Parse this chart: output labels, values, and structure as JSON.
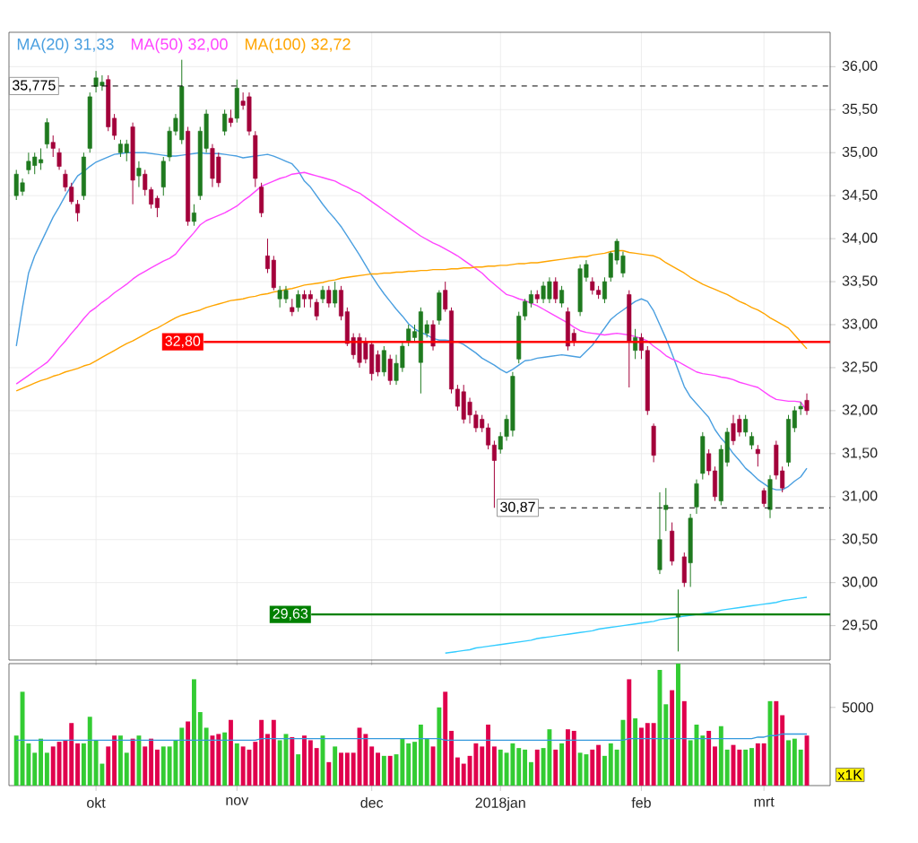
{
  "chart_data": [
    {
      "type": "candlestick",
      "categories": [
        null,
        null,
        null,
        null,
        null,
        null,
        null,
        null,
        null,
        null,
        null,
        null,
        null,
        null,
        null,
        null,
        null,
        null,
        null,
        null,
        null,
        null,
        null,
        null,
        null,
        null,
        null,
        null,
        null,
        null,
        null,
        null,
        null,
        null,
        null,
        null,
        null,
        null,
        null,
        null,
        null,
        null,
        null,
        null,
        null,
        null,
        null,
        null,
        null,
        null,
        null,
        null,
        null,
        null,
        null,
        null,
        null,
        null,
        null,
        null,
        null,
        null,
        null,
        null,
        null,
        null,
        null,
        null,
        null,
        null,
        null,
        null,
        null,
        null,
        null,
        null,
        null,
        null,
        null,
        null,
        null,
        null,
        null,
        null,
        null,
        null,
        null,
        null,
        null,
        null,
        null,
        null,
        null,
        null,
        null,
        null,
        null,
        null,
        null,
        null,
        null,
        null,
        null,
        null,
        null,
        null,
        null,
        null,
        null,
        null,
        null,
        null,
        null,
        null,
        null,
        null,
        null,
        null,
        null,
        null,
        null,
        null,
        null,
        null,
        null,
        null,
        null,
        null,
        null,
        null
      ],
      "ohlc": [
        [
          34.5,
          34.8,
          34.45,
          34.75
        ],
        [
          34.55,
          34.7,
          34.5,
          34.65
        ],
        [
          34.8,
          35.0,
          34.75,
          34.9
        ],
        [
          34.85,
          35.0,
          34.75,
          34.95
        ],
        [
          34.88,
          35.05,
          34.8,
          34.92
        ],
        [
          35.1,
          35.4,
          35.05,
          35.35
        ],
        [
          35.12,
          35.2,
          34.95,
          35.05
        ],
        [
          35.0,
          35.05,
          34.8,
          34.84
        ],
        [
          34.75,
          34.8,
          34.55,
          34.6
        ],
        [
          34.6,
          34.65,
          34.4,
          34.43
        ],
        [
          34.4,
          34.45,
          34.2,
          34.3
        ],
        [
          34.5,
          35.0,
          34.45,
          34.95
        ],
        [
          35.05,
          35.7,
          35.0,
          35.65
        ],
        [
          35.77,
          35.95,
          35.7,
          35.87
        ],
        [
          35.78,
          35.9,
          35.72,
          35.82
        ],
        [
          35.85,
          35.9,
          35.25,
          35.3
        ],
        [
          35.4,
          35.45,
          35.15,
          35.2
        ],
        [
          35.0,
          35.15,
          34.95,
          35.1
        ],
        [
          35.0,
          35.15,
          34.9,
          35.1
        ],
        [
          35.3,
          35.35,
          34.4,
          34.68
        ],
        [
          34.73,
          34.9,
          34.6,
          34.82
        ],
        [
          34.75,
          34.8,
          34.5,
          34.57
        ],
        [
          34.57,
          34.6,
          34.35,
          34.4
        ],
        [
          34.47,
          34.5,
          34.25,
          34.36
        ],
        [
          34.6,
          34.95,
          34.5,
          34.9
        ],
        [
          34.95,
          35.3,
          34.9,
          35.25
        ],
        [
          35.25,
          35.45,
          35.2,
          35.4
        ],
        [
          35.15,
          36.08,
          35.1,
          35.77
        ],
        [
          35.25,
          35.3,
          34.15,
          34.2
        ],
        [
          34.2,
          34.4,
          34.15,
          34.3
        ],
        [
          34.5,
          35.3,
          34.45,
          35.25
        ],
        [
          35.05,
          35.5,
          35.0,
          35.45
        ],
        [
          35.05,
          35.1,
          34.6,
          34.7
        ],
        [
          34.95,
          35.0,
          34.6,
          34.65
        ],
        [
          35.25,
          35.5,
          35.2,
          35.45
        ],
        [
          35.4,
          35.5,
          35.3,
          35.35
        ],
        [
          35.4,
          35.85,
          35.35,
          35.75
        ],
        [
          35.6,
          35.7,
          35.5,
          35.55
        ],
        [
          35.65,
          35.7,
          35.2,
          35.25
        ],
        [
          35.2,
          35.25,
          34.6,
          34.7
        ],
        [
          34.6,
          34.65,
          34.25,
          34.3
        ],
        [
          33.8,
          34.0,
          33.6,
          33.65
        ],
        [
          33.75,
          33.8,
          33.4,
          33.43
        ],
        [
          33.3,
          33.45,
          33.2,
          33.4
        ],
        [
          33.3,
          33.45,
          33.25,
          33.4
        ],
        [
          33.2,
          33.3,
          33.1,
          33.15
        ],
        [
          33.2,
          33.4,
          33.15,
          33.35
        ],
        [
          33.35,
          33.4,
          33.2,
          33.3
        ],
        [
          33.35,
          33.4,
          33.2,
          33.3
        ],
        [
          33.26,
          33.3,
          33.05,
          33.1
        ],
        [
          33.3,
          33.45,
          33.25,
          33.4
        ],
        [
          33.4,
          33.45,
          33.2,
          33.25
        ],
        [
          33.25,
          33.5,
          33.2,
          33.4
        ],
        [
          33.4,
          33.45,
          33.05,
          33.1
        ],
        [
          33.15,
          33.2,
          32.75,
          32.78
        ],
        [
          32.85,
          32.9,
          32.6,
          32.65
        ],
        [
          32.85,
          32.9,
          32.5,
          32.56
        ],
        [
          32.8,
          32.85,
          32.55,
          32.6
        ],
        [
          32.77,
          32.8,
          32.35,
          32.43
        ],
        [
          32.65,
          32.7,
          32.4,
          32.45
        ],
        [
          32.45,
          32.75,
          32.4,
          32.7
        ],
        [
          32.6,
          32.65,
          32.3,
          32.35
        ],
        [
          32.35,
          32.65,
          32.3,
          32.55
        ],
        [
          32.5,
          32.8,
          32.45,
          32.75
        ],
        [
          32.8,
          33.0,
          32.75,
          32.95
        ],
        [
          32.85,
          33.0,
          32.8,
          32.92
        ],
        [
          32.56,
          33.2,
          32.2,
          33.15
        ],
        [
          32.9,
          33.05,
          32.85,
          33.0
        ],
        [
          33.0,
          33.05,
          32.7,
          32.75
        ],
        [
          33.05,
          33.4,
          33.0,
          33.37
        ],
        [
          33.4,
          33.5,
          33.15,
          33.18
        ],
        [
          33.16,
          33.2,
          32.2,
          32.25
        ],
        [
          32.25,
          32.3,
          32.0,
          32.05
        ],
        [
          32.22,
          32.3,
          31.85,
          31.9
        ],
        [
          32.1,
          32.15,
          31.85,
          31.95
        ],
        [
          31.95,
          32.0,
          31.75,
          31.8
        ],
        [
          31.9,
          31.95,
          31.75,
          31.8
        ],
        [
          31.8,
          31.85,
          31.55,
          31.6
        ],
        [
          31.6,
          31.65,
          30.87,
          31.42
        ],
        [
          31.55,
          31.75,
          31.5,
          31.7
        ],
        [
          31.7,
          31.95,
          31.65,
          31.9
        ],
        [
          31.77,
          32.45,
          31.7,
          32.4
        ],
        [
          32.6,
          33.15,
          32.55,
          33.1
        ],
        [
          33.1,
          33.3,
          33.05,
          33.27
        ],
        [
          33.25,
          33.4,
          33.2,
          33.35
        ],
        [
          33.35,
          33.4,
          33.25,
          33.3
        ],
        [
          33.3,
          33.5,
          33.25,
          33.45
        ],
        [
          33.3,
          33.55,
          33.25,
          33.5
        ],
        [
          33.5,
          33.55,
          33.25,
          33.3
        ],
        [
          33.25,
          33.45,
          33.2,
          33.4
        ],
        [
          33.15,
          33.2,
          32.7,
          32.75
        ],
        [
          32.9,
          32.95,
          32.75,
          32.8
        ],
        [
          33.15,
          33.7,
          33.1,
          33.65
        ],
        [
          33.55,
          33.75,
          33.5,
          33.7
        ],
        [
          33.5,
          33.55,
          33.35,
          33.4
        ],
        [
          33.4,
          33.45,
          33.3,
          33.35
        ],
        [
          33.3,
          33.55,
          33.25,
          33.5
        ],
        [
          33.55,
          33.85,
          33.5,
          33.83
        ],
        [
          33.75,
          34.0,
          33.7,
          33.97
        ],
        [
          33.6,
          33.85,
          33.55,
          33.8
        ],
        [
          33.35,
          33.4,
          32.27,
          32.8
        ],
        [
          32.7,
          32.95,
          32.6,
          32.85
        ],
        [
          32.85,
          32.9,
          32.6,
          32.7
        ],
        [
          32.7,
          32.75,
          31.95,
          32.0
        ],
        [
          31.82,
          31.85,
          31.4,
          31.48
        ],
        [
          30.15,
          31.05,
          30.1,
          30.5
        ],
        [
          30.85,
          31.1,
          30.6,
          30.9
        ],
        [
          30.6,
          30.7,
          30.2,
          30.25
        ],
        [
          29.6,
          29.92,
          29.2,
          29.62
        ],
        [
          30.3,
          30.35,
          29.95,
          30.0
        ],
        [
          30.23,
          30.8,
          29.95,
          30.75
        ],
        [
          30.88,
          31.2,
          30.8,
          31.15
        ],
        [
          31.27,
          31.75,
          31.2,
          31.7
        ],
        [
          31.5,
          31.55,
          31.25,
          31.3
        ],
        [
          31.3,
          31.35,
          30.95,
          31.0
        ],
        [
          30.95,
          31.6,
          30.9,
          31.55
        ],
        [
          31.4,
          31.8,
          31.35,
          31.75
        ],
        [
          31.85,
          31.95,
          31.6,
          31.65
        ],
        [
          31.9,
          31.95,
          31.7,
          31.75
        ],
        [
          31.75,
          31.95,
          31.7,
          31.9
        ],
        [
          31.6,
          31.75,
          31.55,
          31.7
        ],
        [
          31.55,
          31.6,
          31.35,
          31.5
        ],
        [
          31.07,
          31.1,
          30.88,
          30.92
        ],
        [
          30.85,
          31.25,
          30.75,
          31.2
        ],
        [
          31.6,
          31.65,
          31.2,
          31.25
        ],
        [
          31.3,
          31.35,
          31.05,
          31.1
        ],
        [
          31.4,
          31.95,
          31.35,
          31.9
        ],
        [
          31.8,
          32.05,
          31.75,
          32.0
        ],
        [
          32.02,
          32.1,
          31.95,
          32.05
        ],
        [
          32.12,
          32.2,
          31.95,
          32.0
        ]
      ],
      "series": [
        {
          "type": "line",
          "name": "MA(20)  31,33",
          "color": "#4a9fe0",
          "values": [
            32.75,
            33.2,
            33.6,
            33.8,
            33.95,
            34.1,
            34.25,
            34.37,
            34.5,
            34.62,
            34.73,
            34.78,
            34.84,
            34.89,
            34.92,
            34.95,
            34.98,
            34.99,
            35.0,
            35.0,
            35.0,
            35.0,
            34.99,
            34.98,
            34.97,
            34.96,
            34.96,
            34.97,
            34.98,
            34.99,
            35.0,
            34.99,
            34.99,
            34.99,
            34.98,
            34.97,
            34.96,
            34.94,
            34.95,
            34.96,
            34.97,
            34.98,
            34.96,
            34.93,
            34.9,
            34.87,
            34.79,
            34.67,
            34.6,
            34.5,
            34.4,
            34.31,
            34.23,
            34.14,
            34.03,
            33.92,
            33.81,
            33.69,
            33.57,
            33.46,
            33.36,
            33.27,
            33.18,
            33.1,
            33.01,
            32.95,
            32.91,
            32.88,
            32.84,
            32.82,
            32.82,
            32.81,
            32.8,
            32.77,
            32.72,
            32.67,
            32.61,
            32.57,
            32.53,
            32.48,
            32.44,
            32.48,
            32.53,
            32.58,
            32.59,
            32.61,
            32.62,
            32.63,
            32.64,
            32.65,
            32.64,
            32.63,
            32.62,
            32.69,
            32.76,
            32.86,
            32.96,
            33.06,
            33.12,
            33.17,
            33.22,
            33.27,
            33.3,
            33.27,
            33.16,
            33.0,
            32.84,
            32.66,
            32.47,
            32.28,
            32.16,
            32.08,
            32.0,
            31.92,
            31.78,
            31.68,
            31.6,
            31.5,
            31.42,
            31.33,
            31.27,
            31.2,
            31.15,
            31.1,
            31.08,
            31.08,
            31.12,
            31.18,
            31.23,
            31.33
          ]
        },
        {
          "type": "line",
          "name": "MA(50)  32,00",
          "color": "#ff44ff",
          "values": [
            32.31,
            32.36,
            32.41,
            32.46,
            32.51,
            32.56,
            32.64,
            32.73,
            32.81,
            32.9,
            32.98,
            33.07,
            33.15,
            33.2,
            33.26,
            33.31,
            33.37,
            33.42,
            33.47,
            33.53,
            33.58,
            33.62,
            33.66,
            33.7,
            33.74,
            33.77,
            33.82,
            33.91,
            33.99,
            34.07,
            34.16,
            34.21,
            34.24,
            34.27,
            34.3,
            34.34,
            34.38,
            34.44,
            34.49,
            34.55,
            34.61,
            34.64,
            34.67,
            34.7,
            34.72,
            34.75,
            34.76,
            34.77,
            34.75,
            34.73,
            34.71,
            34.69,
            34.67,
            34.63,
            34.6,
            34.56,
            34.53,
            34.48,
            34.43,
            34.38,
            34.33,
            34.28,
            34.23,
            34.18,
            34.13,
            34.08,
            34.03,
            33.99,
            33.95,
            33.92,
            33.88,
            33.84,
            33.8,
            33.75,
            33.7,
            33.65,
            33.6,
            33.53,
            33.47,
            33.41,
            33.35,
            33.33,
            33.3,
            33.28,
            33.25,
            33.22,
            33.18,
            33.14,
            33.1,
            33.06,
            33.02,
            32.97,
            32.93,
            32.91,
            32.9,
            32.89,
            32.88,
            32.89,
            32.9,
            32.89,
            32.88,
            32.86,
            32.84,
            32.81,
            32.75,
            32.7,
            32.64,
            32.6,
            32.57,
            32.53,
            32.49,
            32.45,
            32.43,
            32.42,
            32.41,
            32.39,
            32.38,
            32.36,
            32.33,
            32.31,
            32.29,
            32.27,
            32.22,
            32.17,
            32.13,
            32.12,
            32.11,
            32.11,
            32.1,
            32.0
          ]
        },
        {
          "type": "line",
          "name": "MA(100)  32,72",
          "color": "#ffa500",
          "values": [
            32.23,
            32.26,
            32.29,
            32.32,
            32.35,
            32.37,
            32.4,
            32.42,
            32.45,
            32.47,
            32.49,
            32.52,
            32.54,
            32.58,
            32.62,
            32.66,
            32.7,
            32.74,
            32.78,
            32.81,
            32.85,
            32.89,
            32.93,
            32.96,
            33.0,
            33.04,
            33.08,
            33.11,
            33.13,
            33.15,
            33.17,
            33.2,
            33.22,
            33.24,
            33.26,
            33.28,
            33.29,
            33.3,
            33.32,
            33.33,
            33.35,
            33.36,
            33.38,
            33.39,
            33.41,
            33.42,
            33.44,
            33.46,
            33.47,
            33.48,
            33.49,
            33.51,
            33.52,
            33.54,
            33.55,
            33.56,
            33.57,
            33.58,
            33.59,
            33.59,
            33.6,
            33.6,
            33.61,
            33.61,
            33.62,
            33.62,
            33.63,
            33.63,
            33.64,
            33.64,
            33.64,
            33.65,
            33.65,
            33.66,
            33.66,
            33.67,
            33.67,
            33.68,
            33.68,
            33.69,
            33.69,
            33.7,
            33.71,
            33.71,
            33.72,
            33.72,
            33.73,
            33.74,
            33.75,
            33.76,
            33.77,
            33.78,
            33.79,
            33.79,
            33.81,
            33.82,
            33.83,
            33.85,
            33.86,
            33.86,
            33.84,
            33.83,
            33.82,
            33.81,
            33.8,
            33.77,
            33.72,
            33.68,
            33.64,
            33.6,
            33.55,
            33.51,
            33.47,
            33.44,
            33.41,
            33.38,
            33.35,
            33.31,
            33.27,
            33.24,
            33.2,
            33.17,
            33.13,
            33.08,
            33.04,
            33.0,
            32.96,
            32.88,
            32.8,
            32.72
          ]
        },
        {
          "type": "line",
          "color": "#33ccff",
          "values": [
            null,
            null,
            null,
            null,
            null,
            null,
            null,
            null,
            null,
            null,
            null,
            null,
            null,
            null,
            null,
            null,
            null,
            null,
            null,
            null,
            null,
            null,
            null,
            null,
            null,
            null,
            null,
            null,
            null,
            null,
            null,
            null,
            null,
            null,
            null,
            null,
            null,
            null,
            null,
            null,
            null,
            null,
            null,
            null,
            null,
            null,
            null,
            null,
            null,
            null,
            null,
            null,
            null,
            null,
            null,
            null,
            null,
            null,
            null,
            null,
            null,
            null,
            null,
            null,
            null,
            null,
            null,
            null,
            null,
            null,
            29.18,
            29.19,
            29.2,
            29.21,
            29.22,
            29.24,
            29.25,
            29.26,
            29.27,
            29.28,
            29.29,
            29.3,
            29.31,
            29.32,
            29.33,
            29.35,
            29.36,
            29.37,
            29.38,
            29.39,
            29.4,
            29.41,
            29.42,
            29.43,
            29.44,
            29.46,
            29.47,
            29.48,
            29.49,
            29.5,
            29.51,
            29.52,
            29.53,
            29.54,
            29.55,
            29.57,
            29.58,
            29.59,
            29.6,
            29.61,
            29.62,
            29.63,
            29.64,
            29.65,
            29.66,
            29.68,
            29.69,
            29.7,
            29.71,
            29.72,
            29.73,
            29.74,
            29.75,
            29.76,
            29.77,
            29.79,
            29.8,
            29.81,
            29.82,
            29.83
          ]
        }
      ],
      "ylim": [
        29.1,
        36.4
      ],
      "yticks": [
        {
          "value": 29.5,
          "label": "29,50"
        },
        {
          "value": 30,
          "label": "30,00"
        },
        {
          "value": 30.5,
          "label": "30,50"
        },
        {
          "value": 31,
          "label": "31,00"
        },
        {
          "value": 31.5,
          "label": "31,50"
        },
        {
          "value": 32,
          "label": "32,00"
        },
        {
          "value": 32.5,
          "label": "32,50"
        },
        {
          "value": 33,
          "label": "33,00"
        },
        {
          "value": 33.5,
          "label": "33,50"
        },
        {
          "value": 34,
          "label": "34,00"
        },
        {
          "value": 34.5,
          "label": "34,50"
        },
        {
          "value": 35,
          "label": "35,00"
        },
        {
          "value": 35.5,
          "label": "35,50"
        },
        {
          "value": 36,
          "label": "36,00"
        }
      ],
      "ref_lines": [
        {
          "axis": "y",
          "value": 35.775,
          "label": "35,775",
          "color": "#000000",
          "line_style": "dashed"
        },
        {
          "axis": "y",
          "value": 32.8,
          "label": "32,80",
          "color": "#ff0000"
        },
        {
          "axis": "y",
          "value": 30.87,
          "label": "30,87",
          "color": "#000000",
          "line_style": "dashed"
        },
        {
          "axis": "y",
          "value": 29.63,
          "label": "29,63",
          "color": "#008000"
        }
      ],
      "grid": true,
      "legend": "top left"
    },
    {
      "type": "bar",
      "categories": [
        null,
        null,
        null,
        null,
        null,
        null,
        null,
        null,
        null,
        null,
        null,
        null,
        null,
        "okt",
        null,
        null,
        null,
        null,
        null,
        null,
        null,
        null,
        null,
        null,
        null,
        null,
        null,
        null,
        null,
        null,
        null,
        null,
        null,
        null,
        null,
        null,
        "nov",
        null,
        null,
        null,
        null,
        null,
        null,
        null,
        null,
        null,
        null,
        null,
        null,
        null,
        null,
        null,
        null,
        null,
        null,
        null,
        null,
        null,
        "dec",
        null,
        null,
        null,
        null,
        null,
        null,
        null,
        null,
        null,
        null,
        null,
        null,
        null,
        null,
        null,
        null,
        null,
        null,
        null,
        null,
        "2018jan",
        null,
        null,
        null,
        null,
        null,
        null,
        null,
        null,
        null,
        null,
        null,
        null,
        null,
        null,
        null,
        null,
        null,
        null,
        null,
        null,
        null,
        null,
        "feb",
        null,
        null,
        null,
        null,
        null,
        null,
        null,
        null,
        null,
        null,
        null,
        null,
        null,
        null,
        null,
        null,
        null,
        null,
        null,
        "mrt",
        null,
        null,
        null,
        null,
        null,
        null,
        null
      ],
      "series": [
        {
          "type": "bar",
          "values": [
            3200,
            6000,
            2700,
            2100,
            3000,
            2100,
            2500,
            2800,
            2900,
            4000,
            2700,
            2700,
            4400,
            2900,
            1400,
            2500,
            3200,
            3200,
            2100,
            3000,
            3200,
            2500,
            3000,
            2300,
            2500,
            2500,
            2900,
            3700,
            4100,
            6800,
            4700,
            3700,
            3200,
            3300,
            3400,
            4200,
            2700,
            2500,
            2300,
            2800,
            4200,
            3300,
            4200,
            2900,
            3300,
            3100,
            2000,
            3200,
            2900,
            2400,
            3200,
            1500,
            2500,
            2100,
            2100,
            2100,
            3700,
            3300,
            2500,
            2100,
            1900,
            1900,
            2000,
            3000,
            2700,
            2800,
            3900,
            3000,
            2500,
            5000,
            6000,
            3500,
            1800,
            1400,
            1900,
            2700,
            2500,
            3900,
            2500,
            2300,
            2100,
            2700,
            2400,
            2300,
            1500,
            2300,
            2400,
            3600,
            2300,
            2700,
            3600,
            3500,
            2100,
            2000,
            2300,
            2600,
            1900,
            2700,
            2300,
            4200,
            6800,
            4300,
            3700,
            4000,
            4000,
            7400,
            5200,
            6100,
            7800,
            5400,
            2900,
            3900,
            3200,
            3500,
            2500,
            3800,
            2300,
            2600,
            2300,
            2300,
            2400,
            2700,
            2700,
            5400,
            5400,
            4500,
            2900,
            3000,
            2300,
            3200
          ],
          "colors": [
            "#33cc33",
            "#33cc33",
            "#33cc33",
            "#33cc33",
            "#33cc33",
            "#33cc33",
            "#e0004d",
            "#e0004d",
            "#e0004d",
            "#e0004d",
            "#e0004d",
            "#33cc33",
            "#33cc33",
            "#33cc33",
            "#33cc33",
            "#e0004d",
            "#e0004d",
            "#33cc33",
            "#33cc33",
            "#e0004d",
            "#33cc33",
            "#e0004d",
            "#e0004d",
            "#e0004d",
            "#33cc33",
            "#33cc33",
            "#33cc33",
            "#33cc33",
            "#e0004d",
            "#33cc33",
            "#33cc33",
            "#33cc33",
            "#e0004d",
            "#e0004d",
            "#33cc33",
            "#e0004d",
            "#33cc33",
            "#e0004d",
            "#e0004d",
            "#e0004d",
            "#e0004d",
            "#e0004d",
            "#e0004d",
            "#33cc33",
            "#33cc33",
            "#e0004d",
            "#33cc33",
            "#e0004d",
            "#e0004d",
            "#e0004d",
            "#33cc33",
            "#e0004d",
            "#33cc33",
            "#e0004d",
            "#e0004d",
            "#e0004d",
            "#e0004d",
            "#e0004d",
            "#e0004d",
            "#e0004d",
            "#33cc33",
            "#e0004d",
            "#33cc33",
            "#33cc33",
            "#33cc33",
            "#33cc33",
            "#33cc33",
            "#33cc33",
            "#e0004d",
            "#33cc33",
            "#e0004d",
            "#e0004d",
            "#e0004d",
            "#e0004d",
            "#e0004d",
            "#e0004d",
            "#e0004d",
            "#e0004d",
            "#e0004d",
            "#33cc33",
            "#33cc33",
            "#33cc33",
            "#33cc33",
            "#33cc33",
            "#33cc33",
            "#e0004d",
            "#33cc33",
            "#33cc33",
            "#e0004d",
            "#33cc33",
            "#e0004d",
            "#e0004d",
            "#33cc33",
            "#33cc33",
            "#e0004d",
            "#e0004d",
            "#33cc33",
            "#33cc33",
            "#33cc33",
            "#33cc33",
            "#e0004d",
            "#33cc33",
            "#e0004d",
            "#e0004d",
            "#e0004d",
            "#33cc33",
            "#33cc33",
            "#e0004d",
            "#33cc33",
            "#e0004d",
            "#33cc33",
            "#33cc33",
            "#33cc33",
            "#e0004d",
            "#e0004d",
            "#33cc33",
            "#33cc33",
            "#e0004d",
            "#e0004d",
            "#33cc33",
            "#33cc33",
            "#e0004d",
            "#e0004d",
            "#33cc33",
            "#e0004d",
            "#e0004d",
            "#33cc33",
            "#33cc33",
            "#33cc33",
            "#e0004d"
          ]
        },
        {
          "type": "line",
          "color": "#3399dd",
          "values": [
            2900,
            2900,
            2900,
            2900,
            2900,
            2900,
            2900,
            2900,
            2900,
            2900,
            2900,
            2900,
            2900,
            2900,
            2900,
            2900,
            2900,
            2900,
            2900,
            2900,
            2900,
            2900,
            2900,
            2900,
            2900,
            2900,
            2900,
            2900,
            2900,
            2900,
            2900,
            2900,
            2900,
            2900,
            2900,
            2900,
            2900,
            2900,
            2900,
            2900,
            3000,
            3000,
            3000,
            3000,
            3000,
            3000,
            3000,
            3000,
            3000,
            3000,
            3000,
            3000,
            3000,
            3000,
            3000,
            3000,
            3000,
            3000,
            3000,
            3000,
            3000,
            3000,
            3000,
            3000,
            3000,
            3000,
            3000,
            3000,
            3000,
            3000,
            2900,
            2900,
            2900,
            2900,
            2900,
            2900,
            2900,
            2900,
            2900,
            2900,
            2900,
            2900,
            2900,
            2900,
            2900,
            2900,
            2900,
            2900,
            2900,
            2900,
            2900,
            2900,
            2900,
            2900,
            2900,
            2900,
            2900,
            2900,
            2900,
            2900,
            3000,
            3000,
            3000,
            3000,
            3000,
            3000,
            3000,
            3000,
            3000,
            3000,
            3000,
            3000,
            3000,
            3000,
            3000,
            3000,
            3000,
            3000,
            3000,
            3000,
            3000,
            3100,
            3100,
            3200,
            3200,
            3300,
            3300,
            3300,
            3300,
            3300
          ]
        }
      ],
      "ylim": [
        0,
        7800
      ],
      "yticks": [
        5000
      ],
      "annotations": [
        "x1K"
      ]
    }
  ]
}
